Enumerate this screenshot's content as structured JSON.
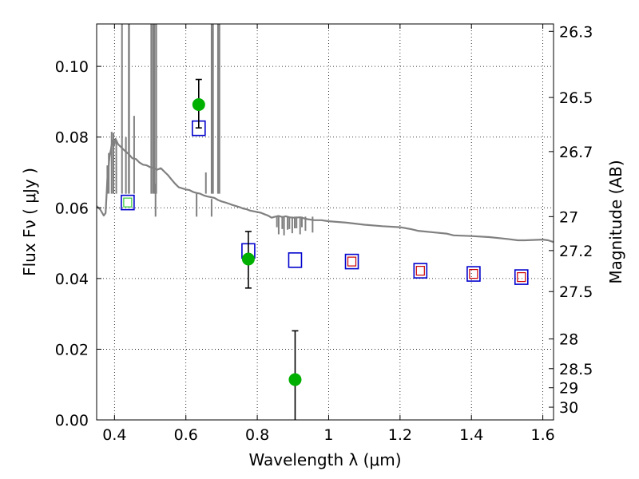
{
  "chart_data": {
    "type": "scatter",
    "title": "",
    "xlabel": "Wavelength  λ (μm)",
    "ylabel": "Flux  Fν  ( μJy )",
    "y2label": "Magnitude (AB)",
    "xlim": [
      0.35,
      1.63
    ],
    "ylim": [
      0.0,
      0.112
    ],
    "grid": true,
    "xticks": [
      {
        "value": 0.4,
        "label": "0.4"
      },
      {
        "value": 0.6,
        "label": "0.6"
      },
      {
        "value": 0.8,
        "label": "0.8"
      },
      {
        "value": 1.0,
        "label": "1"
      },
      {
        "value": 1.2,
        "label": "1.2"
      },
      {
        "value": 1.4,
        "label": "1.4"
      },
      {
        "value": 1.6,
        "label": "1.6"
      }
    ],
    "yticks": [
      {
        "value": 0.0,
        "label": "0.00"
      },
      {
        "value": 0.02,
        "label": "0.02"
      },
      {
        "value": 0.04,
        "label": "0.04"
      },
      {
        "value": 0.06,
        "label": "0.06"
      },
      {
        "value": 0.08,
        "label": "0.08"
      },
      {
        "value": 0.1,
        "label": "0.10"
      }
    ],
    "y2ticks": [
      {
        "label": "26.3",
        "flux": 0.1099
      },
      {
        "label": "26.5",
        "flux": 0.0912
      },
      {
        "label": "26.7",
        "flux": 0.0759
      },
      {
        "label": "27",
        "flux": 0.0575
      },
      {
        "label": "27.2",
        "flux": 0.0479
      },
      {
        "label": "27.5",
        "flux": 0.0363
      },
      {
        "label": "28",
        "flux": 0.0229
      },
      {
        "label": "28.5",
        "flux": 0.0145
      },
      {
        "label": "29",
        "flux": 0.0091
      },
      {
        "label": "30",
        "flux": 0.0036
      }
    ],
    "series": [
      {
        "kind": "spectrum",
        "color": "#808080",
        "points": [
          [
            0.35,
            0.0605
          ],
          [
            0.36,
            0.0595
          ],
          [
            0.37,
            0.0578
          ],
          [
            0.375,
            0.0585
          ],
          [
            0.378,
            0.064
          ],
          [
            0.38,
            0.068
          ],
          [
            0.383,
            0.071
          ],
          [
            0.386,
            0.0745
          ],
          [
            0.39,
            0.0765
          ],
          [
            0.394,
            0.079
          ],
          [
            0.398,
            0.0775
          ],
          [
            0.403,
            0.0795
          ],
          [
            0.41,
            0.078
          ],
          [
            0.42,
            0.077
          ],
          [
            0.43,
            0.076
          ],
          [
            0.44,
            0.0752
          ],
          [
            0.45,
            0.074
          ],
          [
            0.46,
            0.0738
          ],
          [
            0.47,
            0.0728
          ],
          [
            0.48,
            0.0722
          ],
          [
            0.49,
            0.072
          ],
          [
            0.5,
            0.0715
          ],
          [
            0.51,
            0.0712
          ],
          [
            0.52,
            0.0708
          ],
          [
            0.53,
            0.0712
          ],
          [
            0.54,
            0.0702
          ],
          [
            0.55,
            0.0692
          ],
          [
            0.56,
            0.068
          ],
          [
            0.57,
            0.0668
          ],
          [
            0.58,
            0.0658
          ],
          [
            0.59,
            0.0655
          ],
          [
            0.6,
            0.0652
          ],
          [
            0.61,
            0.065
          ],
          [
            0.62,
            0.0645
          ],
          [
            0.63,
            0.0642
          ],
          [
            0.64,
            0.064
          ],
          [
            0.65,
            0.0635
          ],
          [
            0.66,
            0.0632
          ],
          [
            0.67,
            0.063
          ],
          [
            0.68,
            0.0628
          ],
          [
            0.69,
            0.0622
          ],
          [
            0.7,
            0.0618
          ],
          [
            0.71,
            0.0615
          ],
          [
            0.72,
            0.0612
          ],
          [
            0.73,
            0.0608
          ],
          [
            0.74,
            0.0605
          ],
          [
            0.75,
            0.0602
          ],
          [
            0.76,
            0.0598
          ],
          [
            0.77,
            0.0596
          ],
          [
            0.78,
            0.0592
          ],
          [
            0.79,
            0.059
          ],
          [
            0.8,
            0.0588
          ],
          [
            0.81,
            0.0586
          ],
          [
            0.82,
            0.0582
          ],
          [
            0.83,
            0.0578
          ],
          [
            0.84,
            0.0572
          ],
          [
            0.85,
            0.0575
          ],
          [
            0.86,
            0.0577
          ],
          [
            0.87,
            0.0574
          ],
          [
            0.88,
            0.0576
          ],
          [
            0.89,
            0.0573
          ],
          [
            0.9,
            0.0572
          ],
          [
            0.92,
            0.0573
          ],
          [
            0.94,
            0.0568
          ],
          [
            0.96,
            0.0565
          ],
          [
            0.98,
            0.0565
          ],
          [
            1.0,
            0.0562
          ],
          [
            1.05,
            0.0558
          ],
          [
            1.1,
            0.0552
          ],
          [
            1.15,
            0.0548
          ],
          [
            1.2,
            0.0545
          ],
          [
            1.23,
            0.054
          ],
          [
            1.25,
            0.0535
          ],
          [
            1.3,
            0.053
          ],
          [
            1.33,
            0.0527
          ],
          [
            1.35,
            0.0522
          ],
          [
            1.4,
            0.052
          ],
          [
            1.45,
            0.0517
          ],
          [
            1.5,
            0.0512
          ],
          [
            1.53,
            0.0508
          ],
          [
            1.55,
            0.0508
          ],
          [
            1.6,
            0.051
          ],
          [
            1.615,
            0.0508
          ],
          [
            1.63,
            0.0503
          ]
        ],
        "spikes": [
          {
            "x": 0.38,
            "top": 0.072
          },
          {
            "x": 0.384,
            "top": 0.0755
          },
          {
            "x": 0.392,
            "top": 0.0815
          },
          {
            "x": 0.397,
            "top": 0.0812
          },
          {
            "x": 0.405,
            "top": 0.079
          },
          {
            "x": 0.421,
            "top": 0.112
          },
          {
            "x": 0.432,
            "top": 0.08
          },
          {
            "x": 0.44,
            "top": 0.112
          },
          {
            "x": 0.441,
            "top": 0.112
          },
          {
            "x": 0.455,
            "top": 0.086
          },
          {
            "x": 0.503,
            "top": 0.112
          },
          {
            "x": 0.508,
            "top": 0.112
          },
          {
            "x": 0.512,
            "top": 0.112
          },
          {
            "x": 0.517,
            "top": 0.112
          },
          {
            "x": 0.656,
            "top": 0.07
          },
          {
            "x": 0.672,
            "top": 0.112
          },
          {
            "x": 0.676,
            "top": 0.112
          },
          {
            "x": 0.69,
            "top": 0.112
          },
          {
            "x": 0.694,
            "top": 0.112
          }
        ],
        "dips": [
          {
            "x": 0.515,
            "bottom": 0.0668
          },
          {
            "x": 0.63,
            "bottom": 0.064
          },
          {
            "x": 0.672,
            "bottom": 0.0625
          },
          {
            "x": 0.855,
            "bottom": 0.0545
          },
          {
            "x": 0.86,
            "bottom": 0.0525
          },
          {
            "x": 0.87,
            "bottom": 0.054
          },
          {
            "x": 0.875,
            "bottom": 0.0522
          },
          {
            "x": 0.885,
            "bottom": 0.0538
          },
          {
            "x": 0.89,
            "bottom": 0.054
          },
          {
            "x": 0.898,
            "bottom": 0.0528
          },
          {
            "x": 0.905,
            "bottom": 0.0542
          },
          {
            "x": 0.91,
            "bottom": 0.0542
          },
          {
            "x": 0.92,
            "bottom": 0.0525
          },
          {
            "x": 0.925,
            "bottom": 0.0545
          },
          {
            "x": 0.935,
            "bottom": 0.0535
          },
          {
            "x": 0.955,
            "bottom": 0.053
          }
        ]
      },
      {
        "kind": "model_box",
        "stroke": "#0000cc",
        "points": [
          {
            "x": 0.437,
            "y": 0.0615
          },
          {
            "x": 0.636,
            "y": 0.0825
          },
          {
            "x": 0.775,
            "y": 0.0478
          },
          {
            "x": 0.906,
            "y": 0.0452
          },
          {
            "x": 1.065,
            "y": 0.0448
          },
          {
            "x": 1.257,
            "y": 0.0422
          },
          {
            "x": 1.406,
            "y": 0.0413
          },
          {
            "x": 1.54,
            "y": 0.0404
          }
        ]
      },
      {
        "kind": "inner_box",
        "points": [
          {
            "x": 0.437,
            "y": 0.0615,
            "color": "#33cc33"
          },
          {
            "x": 1.065,
            "y": 0.0448,
            "color": "#cc0000"
          },
          {
            "x": 1.257,
            "y": 0.0422,
            "color": "#cc0000"
          },
          {
            "x": 1.406,
            "y": 0.0413,
            "color": "#cc0000"
          },
          {
            "x": 1.54,
            "y": 0.0404,
            "color": "#cc0000"
          }
        ]
      },
      {
        "kind": "observed",
        "color": "#00b000",
        "points": [
          {
            "x": 0.636,
            "y": 0.0892,
            "err_low": 0.0826,
            "err_high": 0.0963
          },
          {
            "x": 0.775,
            "y": 0.0455,
            "err_low": 0.0373,
            "err_high": 0.0533
          },
          {
            "x": 0.906,
            "y": 0.0114,
            "err_low": 0.0,
            "err_high": 0.0252
          }
        ]
      }
    ]
  }
}
